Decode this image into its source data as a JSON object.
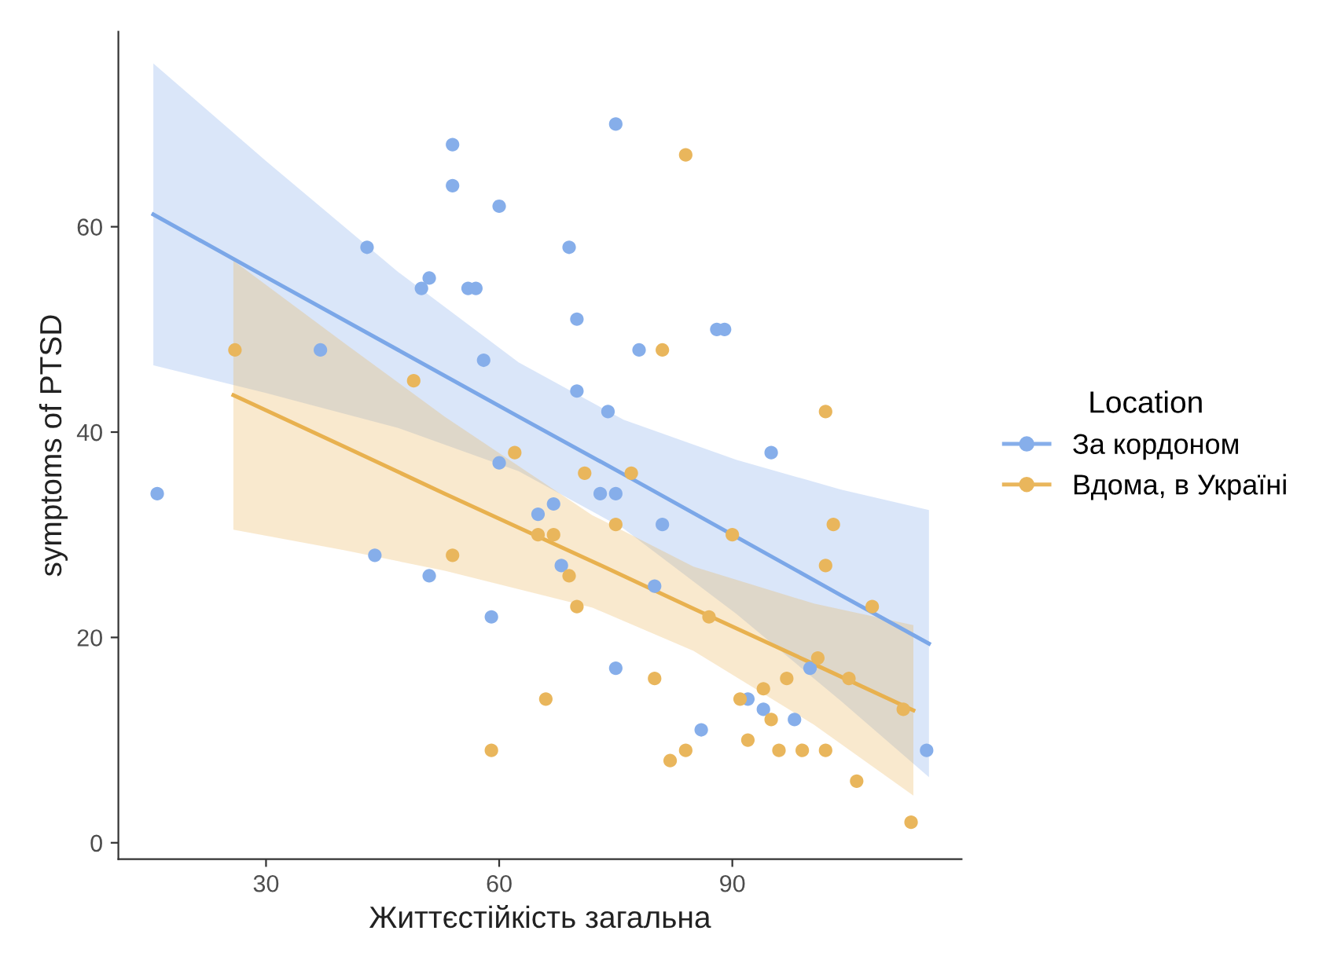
{
  "chart_data": {
    "type": "scatter",
    "xlabel": "Життєстійкість загальна",
    "ylabel": "symptoms of PTSD",
    "legend_title": "Location",
    "legend": "right",
    "grid": false,
    "xlim": [
      11,
      119.5
    ],
    "ylim": [
      -1.6,
      79
    ],
    "xticks": [
      30,
      60,
      90
    ],
    "yticks": [
      0,
      20,
      40,
      60
    ],
    "series": [
      {
        "type": "line",
        "color": "#7ba7e8",
        "x": [
          15.5,
          30,
          47,
          62.5,
          76,
          90.5,
          104,
          115.3
        ],
        "values": [
          61.2,
          55.1,
          48.0,
          41.5,
          35.9,
          29.8,
          24.1,
          19.4
        ],
        "lower": [
          46.5,
          43.8,
          40.4,
          36.2,
          30.6,
          22.3,
          13.8,
          6.4
        ],
        "upper": [
          75.9,
          66.4,
          55.6,
          46.8,
          41.2,
          37.3,
          34.4,
          32.4
        ]
      },
      {
        "type": "line",
        "color": "#e8b14f",
        "x": [
          25.8,
          40,
          53,
          72,
          85,
          100.5,
          113.3
        ],
        "values": [
          43.6,
          38.6,
          34.0,
          27.4,
          22.8,
          17.4,
          12.9
        ],
        "lower": [
          30.5,
          28.5,
          26.5,
          22.9,
          18.7,
          11.5,
          4.6
        ],
        "upper": [
          56.7,
          48.7,
          41.5,
          31.9,
          26.9,
          23.3,
          21.2
        ]
      },
      {
        "name": "За кордоном",
        "marker": "circle",
        "color": "#86aeea",
        "x": [
          16,
          43,
          54,
          54,
          60,
          50,
          51,
          56,
          57,
          58,
          37,
          60,
          75,
          69,
          70,
          88,
          89,
          78,
          70,
          74,
          95,
          65,
          67,
          44,
          51,
          59,
          73,
          75,
          81,
          68,
          80,
          100,
          75,
          92,
          94,
          98,
          86,
          115
        ],
        "values": [
          34,
          58,
          68,
          64,
          62,
          54,
          55,
          54,
          54,
          47,
          48,
          37,
          70,
          58,
          51,
          50,
          50,
          48,
          44,
          42,
          38,
          32,
          33,
          28,
          26,
          22,
          34,
          34,
          31,
          27,
          25,
          17,
          17,
          14,
          13,
          12,
          11,
          9
        ]
      },
      {
        "name": "Вдома, в Україні",
        "marker": "circle",
        "color": "#e9b65c",
        "x": [
          26,
          49,
          62,
          84,
          81,
          102,
          71,
          77,
          65,
          67,
          54,
          66,
          59,
          75,
          90,
          103,
          102,
          108,
          69,
          70,
          87,
          101,
          105,
          112,
          80,
          91,
          94,
          97,
          95,
          92,
          82,
          84,
          96,
          99,
          102,
          106,
          113
        ],
        "values": [
          48,
          45,
          38,
          67,
          48,
          42,
          36,
          36,
          30,
          30,
          28,
          14,
          9,
          31,
          30,
          31,
          27,
          23,
          26,
          23,
          22,
          18,
          16,
          13,
          16,
          14,
          15,
          16,
          12,
          10,
          8,
          9,
          9,
          9,
          9,
          6,
          2
        ]
      }
    ]
  }
}
